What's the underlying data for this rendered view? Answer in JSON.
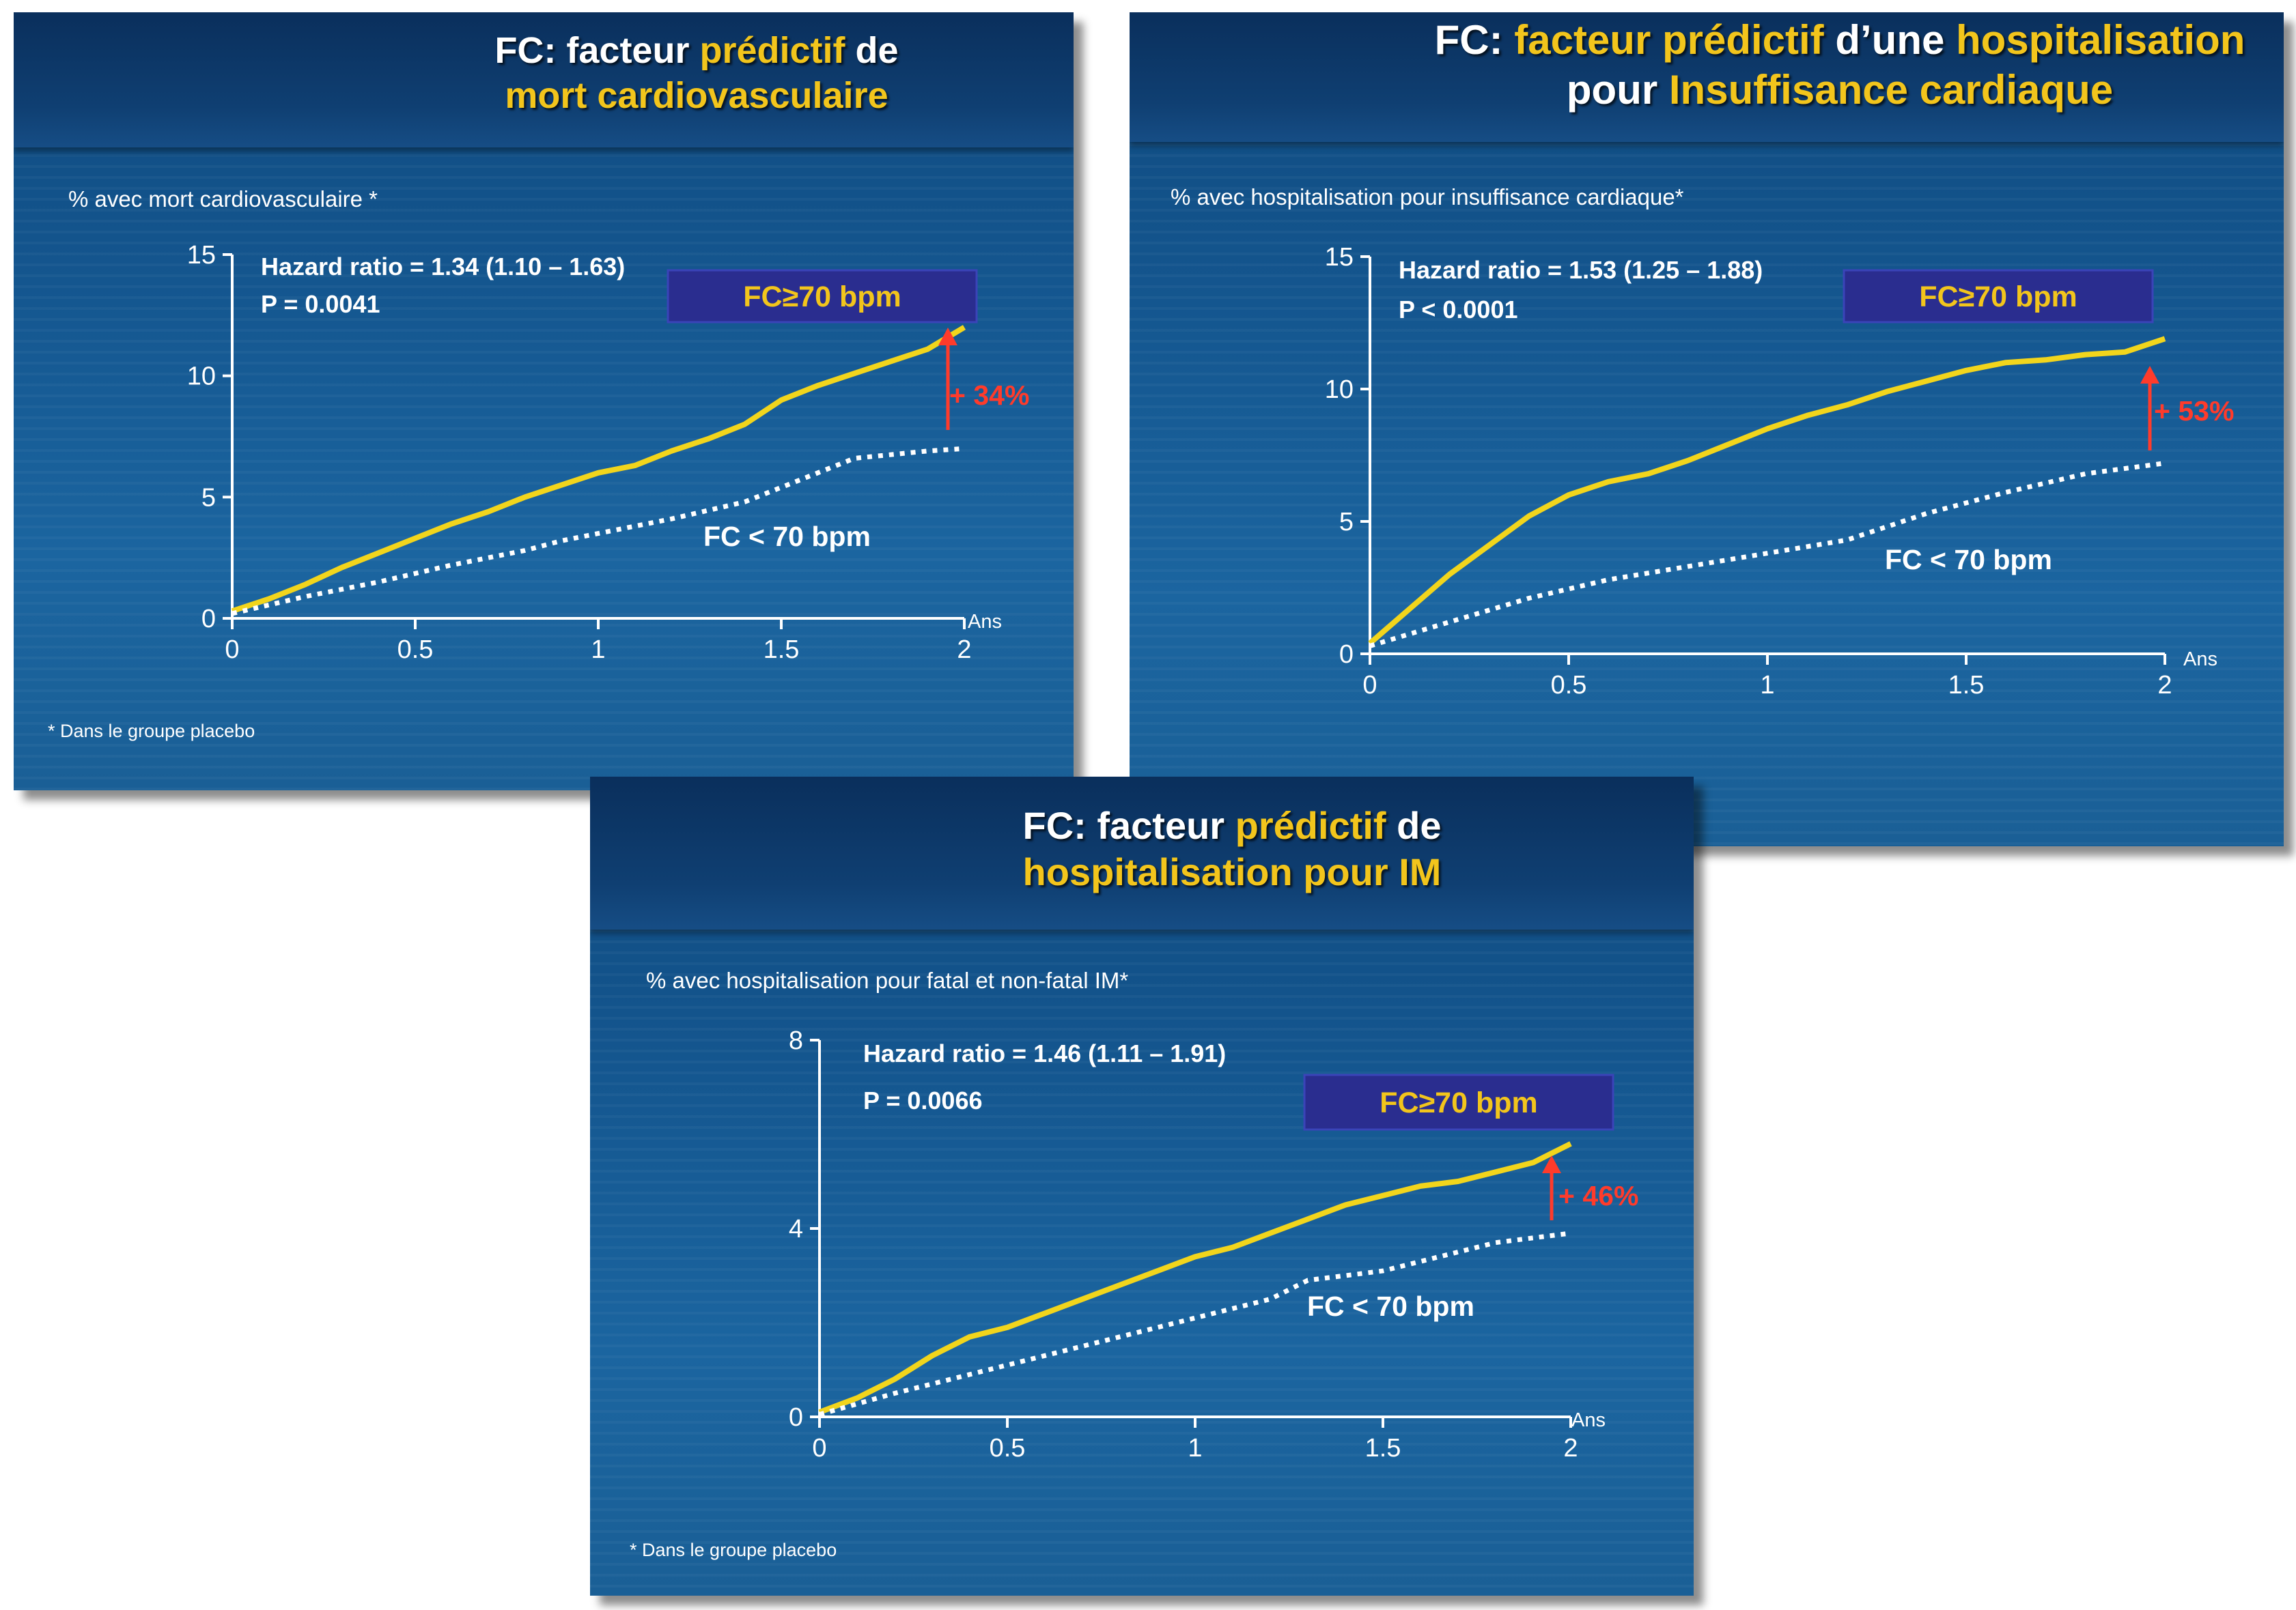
{
  "colors": {
    "high_curve": "#f2d51c",
    "low_curve": "#ffffff",
    "accent": "#ff3b2b",
    "badge": "#2a2d8f"
  },
  "chart_data": [
    {
      "type": "line",
      "title_parts": [
        "FC: facteur ",
        "prédictif",
        " de",
        "mort cardiovasculaire"
      ],
      "ylabel": "% avec mort cardiovasculaire *",
      "xlabel": "Ans",
      "ylim": [
        0,
        15
      ],
      "xlim": [
        0,
        2
      ],
      "yticks": [
        "0",
        "5",
        "10",
        "15"
      ],
      "xticks": [
        "0",
        "0.5",
        "1",
        "1.5",
        "2"
      ],
      "hazard": "Hazard ratio = 1.34 (1.10 – 1.63)",
      "pvalue": "P = 0.0041",
      "badge": "FC≥70 bpm",
      "low_label": "FC < 70 bpm",
      "increase": "+ 34%",
      "footnote": "* Dans le groupe placebo",
      "series": [
        {
          "name": "FC≥70 bpm",
          "style": "solid",
          "x": [
            0,
            0.1,
            0.2,
            0.3,
            0.4,
            0.5,
            0.6,
            0.7,
            0.8,
            0.9,
            1.0,
            1.1,
            1.2,
            1.3,
            1.4,
            1.5,
            1.6,
            1.7,
            1.8,
            1.9,
            2.0
          ],
          "values": [
            0.3,
            0.8,
            1.4,
            2.1,
            2.7,
            3.3,
            3.9,
            4.4,
            5.0,
            5.5,
            6.0,
            6.3,
            6.9,
            7.4,
            8.0,
            9.0,
            9.6,
            10.1,
            10.6,
            11.1,
            12.0
          ]
        },
        {
          "name": "FC < 70 bpm",
          "style": "dotted",
          "x": [
            0,
            0.2,
            0.4,
            0.6,
            0.8,
            0.9,
            1.0,
            1.2,
            1.4,
            1.6,
            1.7,
            1.9,
            2.0
          ],
          "values": [
            0.2,
            0.9,
            1.5,
            2.2,
            2.8,
            3.2,
            3.5,
            4.1,
            4.8,
            6.0,
            6.6,
            6.9,
            7.0
          ]
        }
      ]
    },
    {
      "type": "line",
      "title_parts": [
        "FC: ",
        "facteur prédictif",
        " d’une ",
        "hospitalisation",
        "pour ",
        "Insuffisance cardiaque"
      ],
      "ylabel": "% avec hospitalisation pour insuffisance cardiaque*",
      "xlabel": "Ans",
      "ylim": [
        0,
        15
      ],
      "xlim": [
        0,
        2
      ],
      "yticks": [
        "0",
        "5",
        "10",
        "15"
      ],
      "xticks": [
        "0",
        "0.5",
        "1",
        "1.5",
        "2"
      ],
      "hazard": "Hazard ratio = 1.53 (1.25 – 1.88)",
      "pvalue": "P < 0.0001",
      "badge": "FC≥70 bpm",
      "low_label": "FC < 70 bpm",
      "increase": "+ 53%",
      "series": [
        {
          "name": "FC≥70 bpm",
          "style": "solid",
          "x": [
            0,
            0.1,
            0.2,
            0.3,
            0.4,
            0.5,
            0.6,
            0.7,
            0.8,
            0.9,
            1.0,
            1.1,
            1.2,
            1.3,
            1.4,
            1.5,
            1.6,
            1.7,
            1.8,
            1.9,
            2.0
          ],
          "values": [
            0.4,
            1.7,
            3.0,
            4.1,
            5.2,
            6.0,
            6.5,
            6.8,
            7.3,
            7.9,
            8.5,
            9.0,
            9.4,
            9.9,
            10.3,
            10.7,
            11.0,
            11.1,
            11.3,
            11.4,
            11.9
          ]
        },
        {
          "name": "FC < 70 bpm",
          "style": "dotted",
          "x": [
            0,
            0.2,
            0.4,
            0.6,
            0.8,
            1.0,
            1.2,
            1.4,
            1.6,
            1.8,
            2.0
          ],
          "values": [
            0.3,
            1.2,
            2.1,
            2.8,
            3.3,
            3.8,
            4.3,
            5.3,
            6.1,
            6.8,
            7.2
          ]
        }
      ]
    },
    {
      "type": "line",
      "title_parts": [
        "FC: facteur ",
        "prédictif",
        " de",
        "hospitalisation pour IM"
      ],
      "ylabel": "% avec hospitalisation pour fatal et non-fatal IM*",
      "xlabel": "Ans",
      "ylim": [
        0,
        8
      ],
      "xlim": [
        0,
        2
      ],
      "yticks": [
        "0",
        "4",
        "8"
      ],
      "xticks": [
        "0",
        "0.5",
        "1",
        "1.5",
        "2"
      ],
      "hazard": "Hazard ratio = 1.46 (1.11 – 1.91)",
      "pvalue": "P = 0.0066",
      "badge": "FC≥70 bpm",
      "low_label": "FC < 70 bpm",
      "increase": "+ 46%",
      "footnote": "* Dans le groupe placebo",
      "series": [
        {
          "name": "FC≥70 bpm",
          "style": "solid",
          "x": [
            0,
            0.1,
            0.2,
            0.3,
            0.4,
            0.5,
            0.6,
            0.7,
            0.8,
            0.9,
            1.0,
            1.1,
            1.2,
            1.3,
            1.4,
            1.5,
            1.6,
            1.7,
            1.8,
            1.9,
            1.95,
            2.0
          ],
          "values": [
            0.1,
            0.4,
            0.8,
            1.3,
            1.7,
            1.9,
            2.2,
            2.5,
            2.8,
            3.1,
            3.4,
            3.6,
            3.9,
            4.2,
            4.5,
            4.7,
            4.9,
            5.0,
            5.2,
            5.4,
            5.6,
            5.8
          ]
        },
        {
          "name": "FC < 70 bpm",
          "style": "dotted",
          "x": [
            0,
            0.2,
            0.4,
            0.6,
            0.8,
            1.0,
            1.2,
            1.3,
            1.5,
            1.6,
            1.7,
            1.8,
            1.9,
            2.0
          ],
          "values": [
            0.05,
            0.5,
            0.9,
            1.3,
            1.7,
            2.1,
            2.5,
            2.9,
            3.1,
            3.3,
            3.5,
            3.7,
            3.8,
            3.9
          ]
        }
      ]
    }
  ]
}
